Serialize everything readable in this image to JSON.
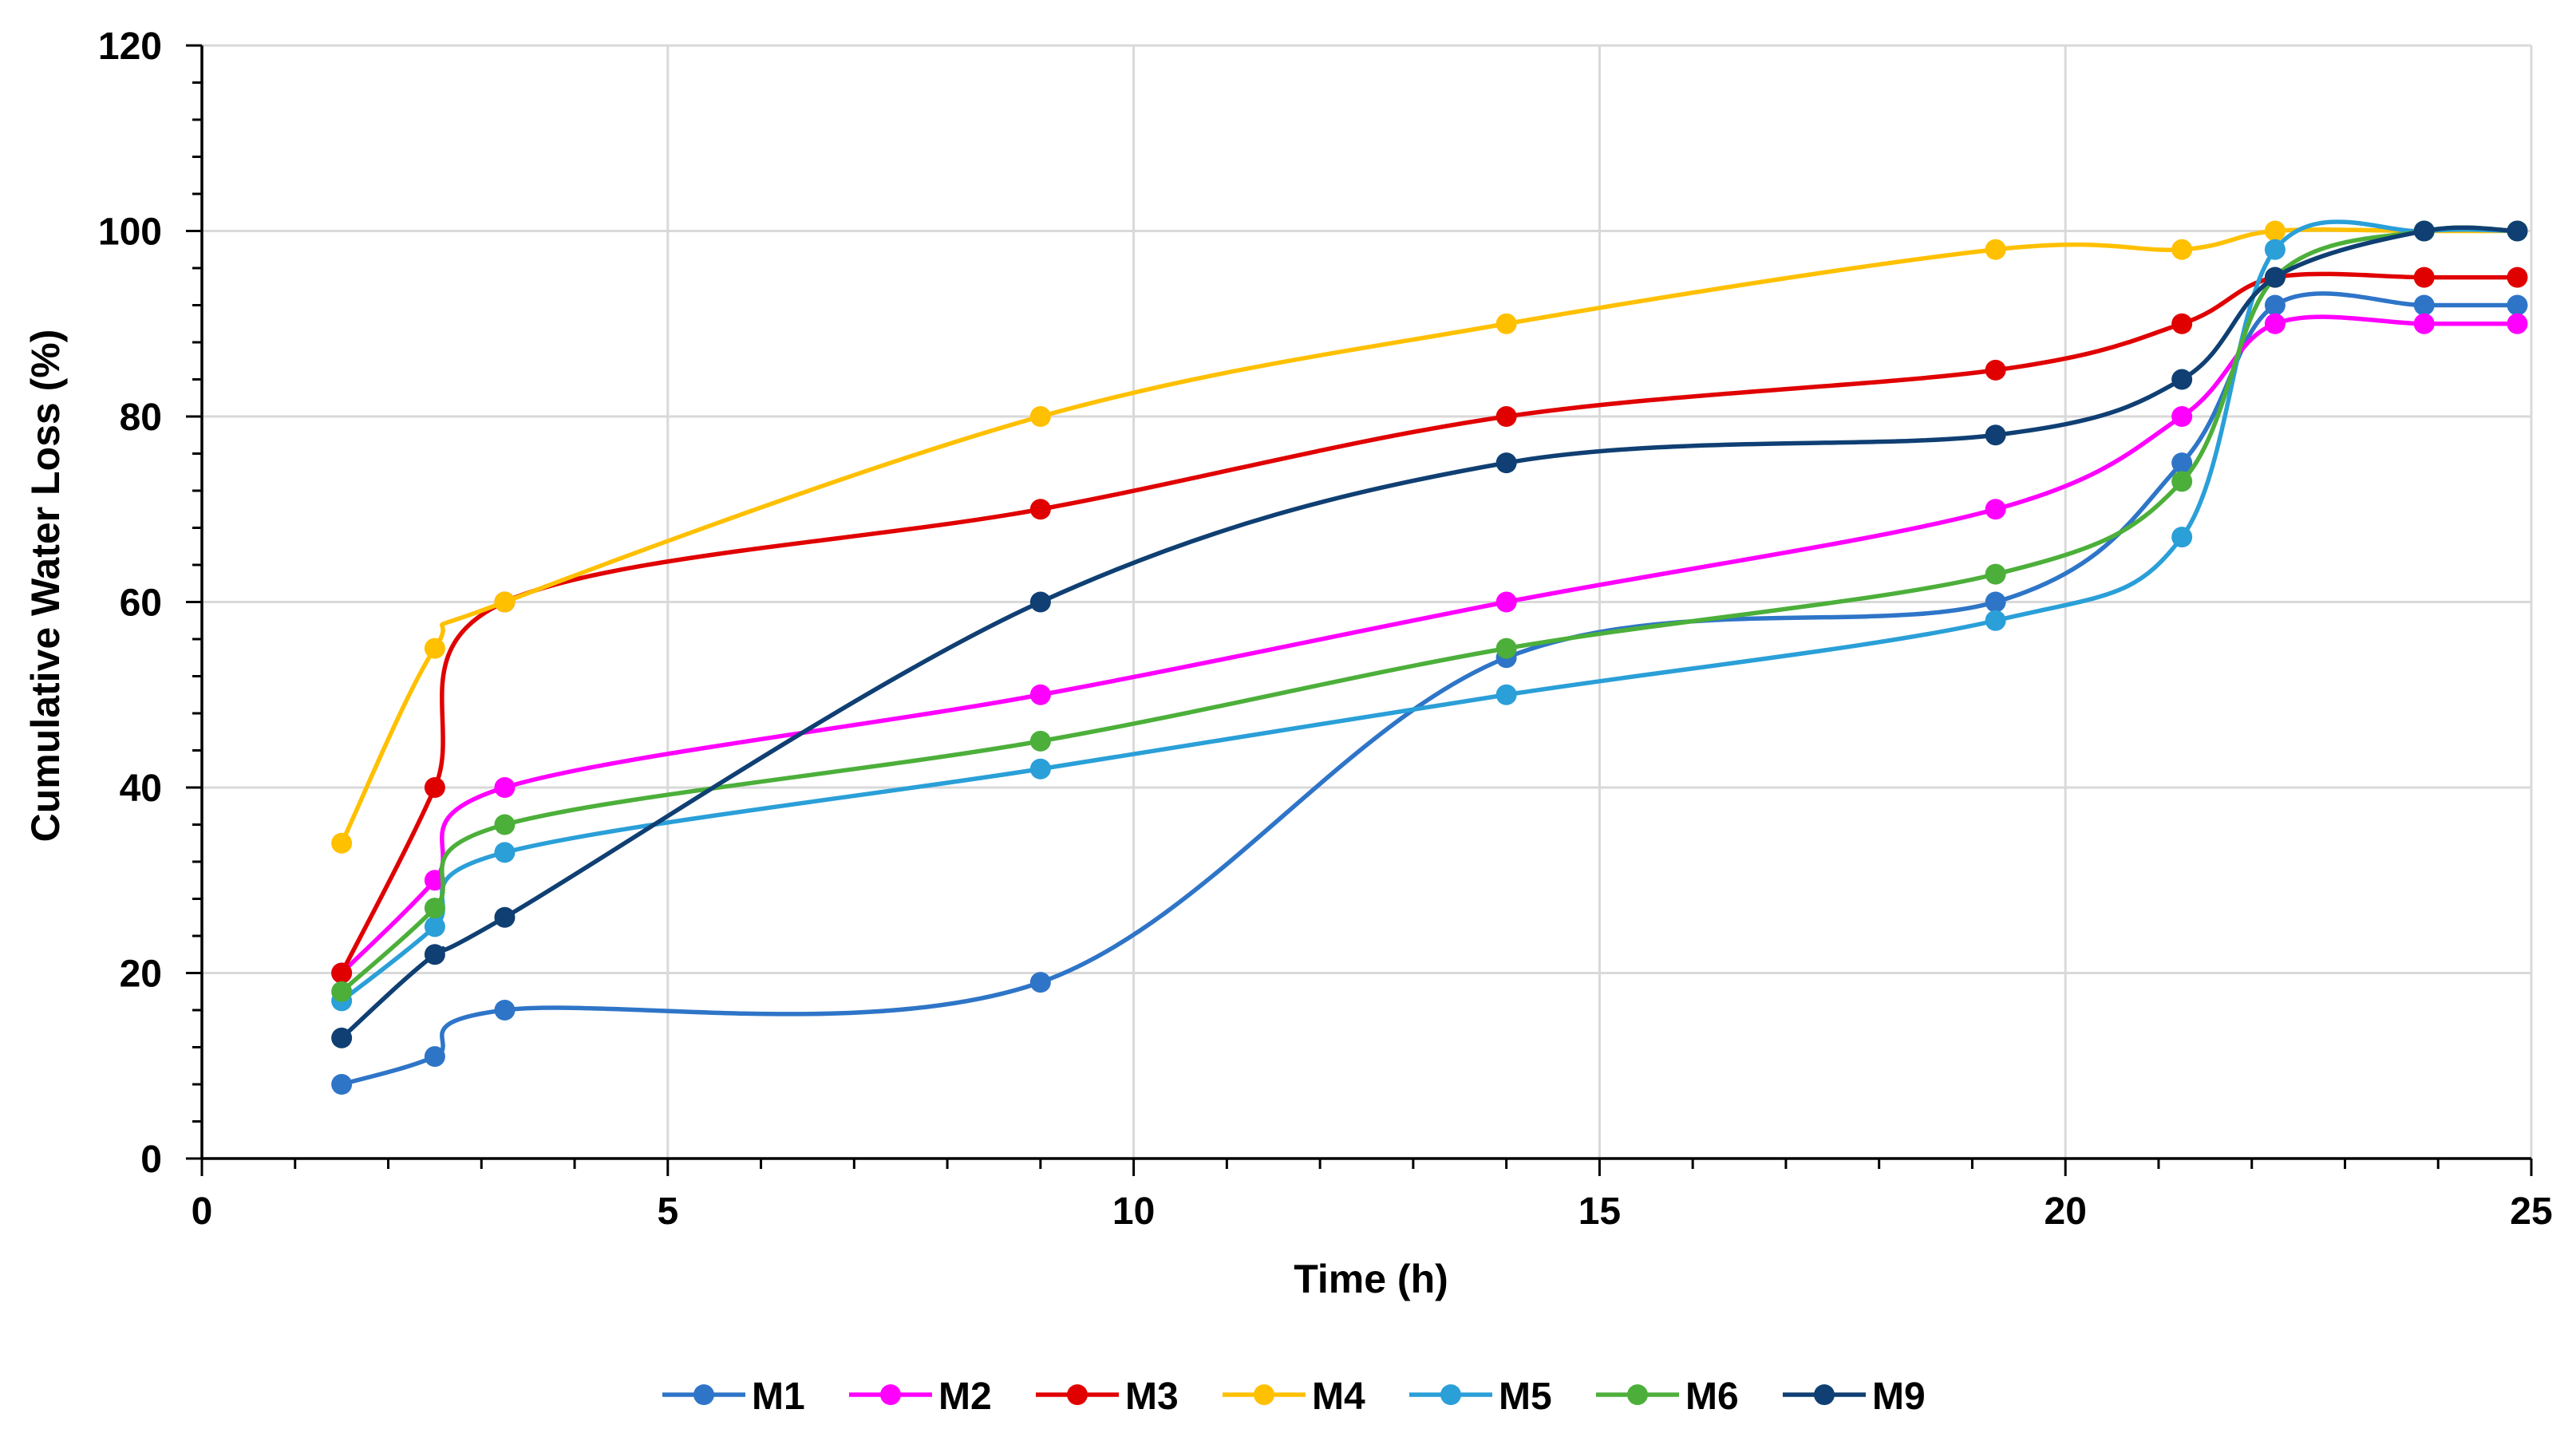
{
  "chart_data": {
    "type": "line",
    "title": "",
    "xlabel": "Time (h)",
    "ylabel": "Cumulative Water Loss (%)",
    "xlim": [
      0,
      25
    ],
    "ylim": [
      0,
      120
    ],
    "x_major_ticks": [
      0,
      5,
      10,
      15,
      20,
      25
    ],
    "x_minor_step": 1,
    "y_major_ticks": [
      0,
      20,
      40,
      60,
      80,
      100,
      120
    ],
    "y_minor_step": 4,
    "grid": "vertical major gridlines and horizontal major gridlines",
    "legend_position": "bottom",
    "x": [
      1.5,
      2.5,
      3.25,
      9,
      14,
      19.25,
      21.25,
      22.25,
      23.85,
      24.85
    ],
    "series": [
      {
        "name": "M1",
        "color": "#2E75C8",
        "values": [
          8,
          11,
          16,
          19,
          54,
          60,
          75,
          92,
          92,
          92
        ]
      },
      {
        "name": "M2",
        "color": "#FF00FF",
        "values": [
          20,
          30,
          40,
          50,
          60,
          70,
          80,
          90,
          90,
          90
        ]
      },
      {
        "name": "M3",
        "color": "#E00000",
        "values": [
          20,
          40,
          60,
          70,
          80,
          85,
          90,
          95,
          95,
          95
        ]
      },
      {
        "name": "M4",
        "color": "#FFC000",
        "values": [
          34,
          55,
          60,
          80,
          90,
          98,
          98,
          100,
          100,
          100
        ]
      },
      {
        "name": "M5",
        "color": "#2A9FD8",
        "values": [
          17,
          25,
          33,
          42,
          50,
          58,
          67,
          98,
          100,
          100
        ]
      },
      {
        "name": "M6",
        "color": "#4CAF3A",
        "values": [
          18,
          27,
          36,
          45,
          55,
          63,
          73,
          95,
          100,
          100
        ]
      },
      {
        "name": "M9",
        "color": "#0F3F73",
        "values": [
          13,
          22,
          26,
          60,
          75,
          78,
          84,
          95,
          100,
          100
        ]
      }
    ]
  }
}
